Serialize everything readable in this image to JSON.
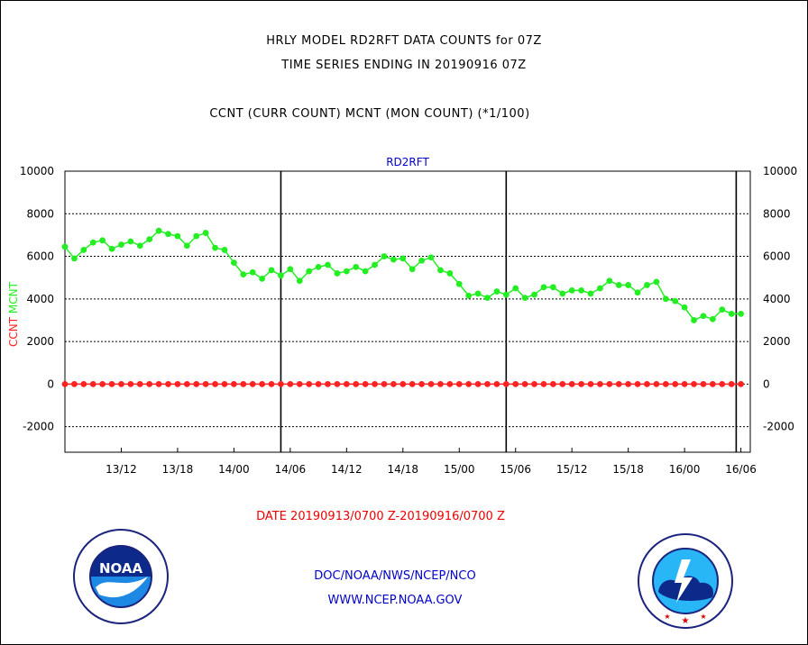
{
  "header": {
    "line1": "HRLY MODEL RD2RFT DATA COUNTS for 07Z",
    "line2": "TIME SERIES ENDING IN 20190916 07Z",
    "line3": "CCNT (CURR COUNT) MCNT (MON COUNT) (*1/100)"
  },
  "footer": {
    "date_range": "DATE 20190913/0700 Z-20190916/0700 Z",
    "org": "DOC/NOAA/NWS/NCEP/NCO",
    "url": "WWW.NCEP.NOAA.GOV"
  },
  "logos": {
    "left": {
      "icon": "noaa-logo-icon",
      "text": "NOAA"
    },
    "right": {
      "icon": "nws-logo-icon"
    }
  },
  "colors": {
    "mcnt": "#22ee22",
    "ccnt": "#ff2222",
    "panel_title": "#0000cc",
    "date_text": "#ee0000",
    "footer_text": "#0000cc"
  },
  "chart_data": {
    "type": "line",
    "title": "RD2RFT",
    "ylabel_parts": [
      {
        "text": "CCNT",
        "color": "#ff2222"
      },
      {
        "text": "MCNT",
        "color": "#22ee22"
      }
    ],
    "ylim": [
      -3200,
      10000
    ],
    "y_ticks": [
      -2000,
      0,
      2000,
      4000,
      6000,
      8000,
      10000
    ],
    "y_tick_labels": [
      "-2000",
      "0",
      "2000",
      "4000",
      "6000",
      "8000",
      "10000"
    ],
    "grid": true,
    "xlim": [
      0,
      73
    ],
    "x_ticks": [
      6,
      12,
      18,
      24,
      30,
      36,
      42,
      48,
      54,
      60,
      66,
      72
    ],
    "x_tick_labels": [
      "13/12",
      "13/18",
      "14/00",
      "14/06",
      "14/12",
      "14/18",
      "15/00",
      "15/06",
      "15/12",
      "15/18",
      "16/00",
      "16/06"
    ],
    "vlines": [
      23,
      47,
      71.5
    ],
    "series": [
      {
        "name": "MCNT",
        "color": "#22ee22",
        "values": [
          6450,
          5900,
          6300,
          6650,
          6750,
          6350,
          6550,
          6700,
          6500,
          6800,
          7200,
          7050,
          6950,
          6500,
          6950,
          7100,
          6400,
          6300,
          5700,
          5150,
          5250,
          4950,
          5350,
          5100,
          5400,
          4850,
          5300,
          5500,
          5600,
          5200,
          5300,
          5500,
          5300,
          5600,
          6000,
          5850,
          5900,
          5400,
          5800,
          5950,
          5350,
          5200,
          4700,
          4150,
          4250,
          4050,
          4350,
          4200,
          4500,
          4050,
          4200,
          4550,
          4550,
          4250,
          4400,
          4400,
          4250,
          4500,
          4850,
          4650,
          4650,
          4300,
          4650,
          4800,
          4000,
          3900,
          3600,
          3000,
          3200,
          3050,
          3500,
          3300,
          3300
        ]
      },
      {
        "name": "CCNT",
        "color": "#ff2222",
        "values": [
          0,
          0,
          0,
          0,
          0,
          0,
          0,
          0,
          0,
          0,
          0,
          0,
          0,
          0,
          0,
          0,
          0,
          0,
          0,
          0,
          0,
          0,
          0,
          0,
          0,
          0,
          0,
          0,
          0,
          0,
          0,
          0,
          0,
          0,
          0,
          0,
          0,
          0,
          0,
          0,
          0,
          0,
          0,
          0,
          0,
          0,
          0,
          0,
          0,
          0,
          0,
          0,
          0,
          0,
          0,
          0,
          0,
          0,
          0,
          0,
          0,
          0,
          0,
          0,
          0,
          0,
          0,
          0,
          0,
          0,
          0,
          0,
          0
        ]
      }
    ]
  }
}
